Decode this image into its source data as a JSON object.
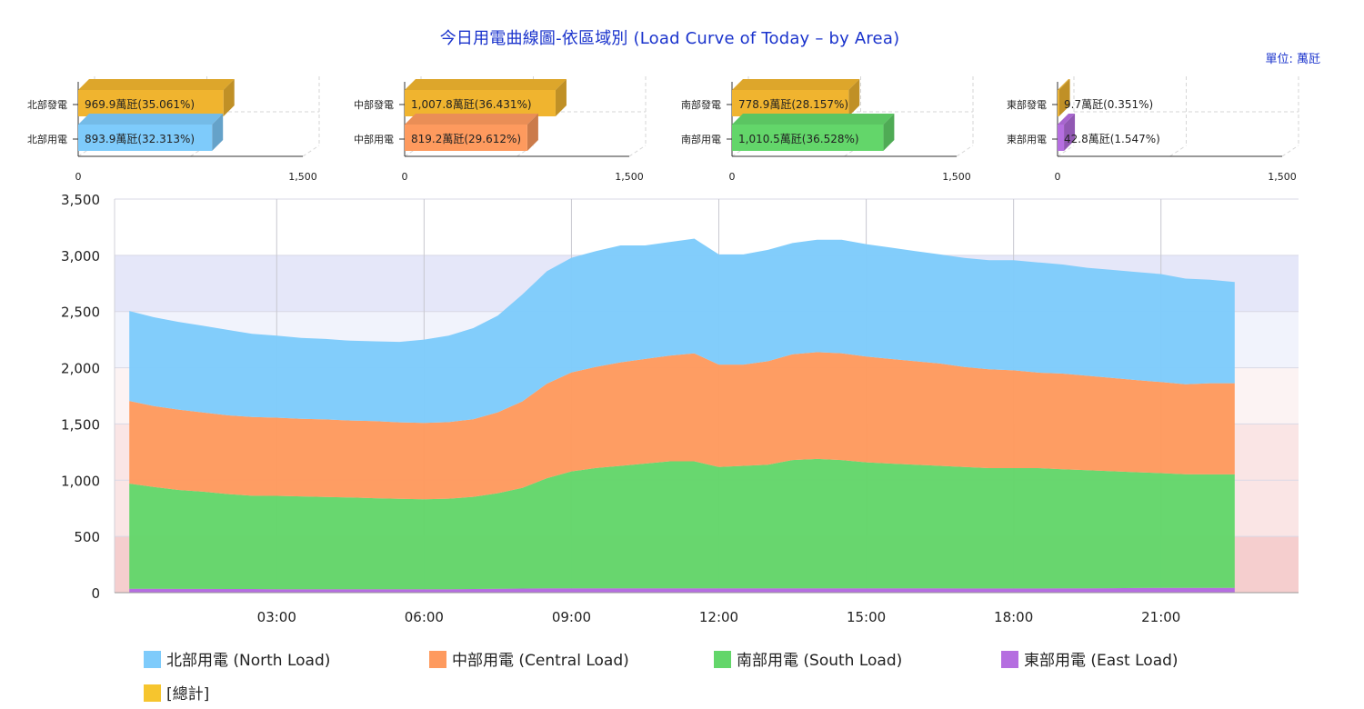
{
  "title": "今日用電曲線圖-依區域別 (Load Curve of Today – by Area)",
  "unit": "單位: 萬瓩",
  "colors": {
    "north": "#7ecbfb",
    "central": "#fe9a5e",
    "south": "#63d66a",
    "east": "#b56ee0",
    "total": "#f6c52e",
    "gen": "#f0b42f"
  },
  "mini_charts": [
    {
      "axis_min": "0",
      "axis_max": "1,500",
      "max": 1500,
      "bars": [
        {
          "category": "北部發電",
          "value": 969.9,
          "label": "969.9萬瓩(35.061%)",
          "kind": "gen"
        },
        {
          "category": "北部用電",
          "value": 893.9,
          "label": "893.9萬瓩(32.313%)",
          "kind": "north"
        }
      ]
    },
    {
      "axis_min": "0",
      "axis_max": "1,500",
      "max": 1500,
      "bars": [
        {
          "category": "中部發電",
          "value": 1007.8,
          "label": "1,007.8萬瓩(36.431%)",
          "kind": "gen"
        },
        {
          "category": "中部用電",
          "value": 819.2,
          "label": "819.2萬瓩(29.612%)",
          "kind": "central"
        }
      ]
    },
    {
      "axis_min": "0",
      "axis_max": "1,500",
      "max": 1500,
      "bars": [
        {
          "category": "南部發電",
          "value": 778.9,
          "label": "778.9萬瓩(28.157%)",
          "kind": "gen"
        },
        {
          "category": "南部用電",
          "value": 1010.5,
          "label": "1,010.5萬瓩(36.528%)",
          "kind": "south"
        }
      ]
    },
    {
      "axis_min": "0",
      "axis_max": "1,500",
      "max": 1500,
      "bars": [
        {
          "category": "東部發電",
          "value": 9.7,
          "label": "9.7萬瓩(0.351%)",
          "kind": "gen"
        },
        {
          "category": "東部用電",
          "value": 42.8,
          "label": "42.8萬瓩(1.547%)",
          "kind": "east"
        }
      ]
    }
  ],
  "chart_data": {
    "type": "area",
    "stacked": true,
    "x_hours": [
      0,
      0.5,
      1,
      1.5,
      2,
      2.5,
      3,
      3.5,
      4,
      4.5,
      5,
      5.5,
      6,
      6.5,
      7,
      7.5,
      8,
      8.5,
      9,
      9.5,
      10,
      10.5,
      11,
      11.5,
      12,
      12.5,
      13,
      13.5,
      14,
      14.5,
      15,
      15.5,
      16,
      16.5,
      17,
      17.5,
      18,
      18.5,
      19,
      19.5,
      20,
      20.5,
      21,
      21.5,
      22,
      22.5
    ],
    "x_range_hours": [
      -0.3,
      23.8
    ],
    "x_ticks": [
      "03:00",
      "06:00",
      "09:00",
      "12:00",
      "15:00",
      "18:00",
      "21:00"
    ],
    "x_tick_hours": [
      3,
      6,
      9,
      12,
      15,
      18,
      21
    ],
    "y_ticks": [
      "0",
      "500",
      "1,000",
      "1,500",
      "2,000",
      "2,500",
      "3,000",
      "3,500"
    ],
    "ylim": [
      0,
      3500
    ],
    "y_bands": [
      {
        "from": 0,
        "to": 500,
        "color": "rgba(220,80,80,0.28)"
      },
      {
        "from": 500,
        "to": 1500,
        "color": "rgba(230,110,110,0.18)"
      },
      {
        "from": 1500,
        "to": 2000,
        "color": "rgba(230,140,140,0.10)"
      },
      {
        "from": 2000,
        "to": 2500,
        "color": "rgba(180,190,240,0.18)"
      },
      {
        "from": 2500,
        "to": 3000,
        "color": "rgba(170,175,235,0.30)"
      }
    ],
    "series": [
      {
        "name": "東部用電 (East Load)",
        "key": "east",
        "values": [
          35,
          34,
          33,
          33,
          32,
          32,
          31,
          31,
          31,
          31,
          30,
          30,
          30,
          31,
          32,
          34,
          36,
          38,
          38,
          38,
          38,
          38,
          38,
          38,
          38,
          38,
          38,
          39,
          39,
          39,
          39,
          38,
          38,
          38,
          37,
          37,
          37,
          37,
          38,
          39,
          40,
          41,
          43,
          43,
          42,
          42
        ]
      },
      {
        "name": "南部用電 (South Load)",
        "key": "south",
        "values": [
          935,
          905,
          880,
          865,
          845,
          830,
          830,
          825,
          820,
          815,
          810,
          805,
          800,
          805,
          820,
          850,
          895,
          980,
          1040,
          1070,
          1090,
          1110,
          1130,
          1130,
          1080,
          1090,
          1100,
          1140,
          1150,
          1140,
          1120,
          1110,
          1100,
          1090,
          1080,
          1070,
          1070,
          1070,
          1060,
          1050,
          1040,
          1030,
          1020,
          1010,
          1010,
          1010
        ]
      },
      {
        "name": "中部用電 (Central Load)",
        "key": "central",
        "values": [
          735,
          720,
          715,
          705,
          700,
          700,
          695,
          690,
          690,
          685,
          685,
          680,
          680,
          680,
          690,
          720,
          770,
          840,
          880,
          900,
          920,
          930,
          940,
          960,
          910,
          900,
          920,
          940,
          950,
          950,
          940,
          930,
          920,
          910,
          890,
          880,
          870,
          850,
          850,
          840,
          830,
          820,
          810,
          800,
          810,
          810
        ]
      },
      {
        "name": "北部用電 (North Load)",
        "key": "north",
        "values": [
          800,
          790,
          780,
          770,
          760,
          740,
          730,
          720,
          715,
          710,
          710,
          715,
          740,
          770,
          810,
          860,
          950,
          1000,
          1020,
          1030,
          1040,
          1010,
          1010,
          1020,
          980,
          980,
          990,
          990,
          1000,
          1010,
          1000,
          990,
          980,
          970,
          970,
          970,
          980,
          980,
          970,
          960,
          960,
          960,
          960,
          940,
          920,
          900
        ]
      }
    ],
    "legend": [
      {
        "label": "北部用電 (North Load)",
        "key": "north"
      },
      {
        "label": "中部用電 (Central Load)",
        "key": "central"
      },
      {
        "label": "南部用電 (South Load)",
        "key": "south"
      },
      {
        "label": "東部用電 (East Load)",
        "key": "east"
      },
      {
        "label": "[總計]",
        "key": "total"
      }
    ],
    "legend_position": "bottom"
  }
}
